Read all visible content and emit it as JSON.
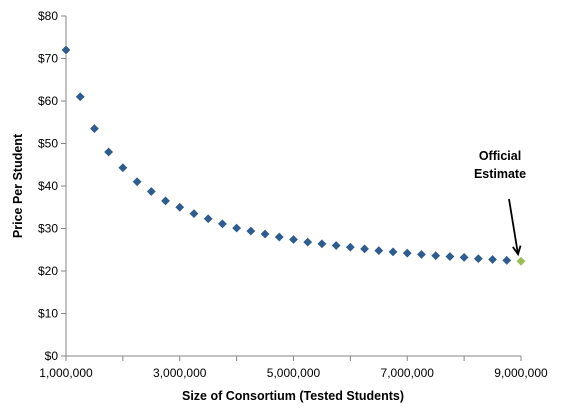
{
  "chart_data": {
    "type": "scatter",
    "title": "",
    "xlabel": "Size of Consortium (Tested Students)",
    "ylabel": "Price Per Student",
    "xlim": [
      1000000,
      9000000
    ],
    "ylim": [
      0,
      80
    ],
    "xticks": [
      1000000,
      3000000,
      5000000,
      7000000,
      9000000
    ],
    "xtick_labels": [
      "1,000,000",
      "3,000,000",
      "5,000,000",
      "7,000,000",
      "9,000,000"
    ],
    "yticks": [
      0,
      10,
      20,
      30,
      40,
      50,
      60,
      70,
      80
    ],
    "ytick_labels": [
      "$0",
      "$10",
      "$20",
      "$30",
      "$40",
      "$50",
      "$60",
      "$70",
      "$80"
    ],
    "grid": false,
    "legend": "none",
    "series": [
      {
        "color": "#2E5C8F",
        "marker": "diamond",
        "points": [
          {
            "x": 1000000,
            "y": 72.0
          },
          {
            "x": 1250000,
            "y": 61.0
          },
          {
            "x": 1500000,
            "y": 53.5
          },
          {
            "x": 1750000,
            "y": 48.0
          },
          {
            "x": 2000000,
            "y": 44.3
          },
          {
            "x": 2250000,
            "y": 41.0
          },
          {
            "x": 2500000,
            "y": 38.7
          },
          {
            "x": 2750000,
            "y": 36.5
          },
          {
            "x": 3000000,
            "y": 35.0
          },
          {
            "x": 3250000,
            "y": 33.5
          },
          {
            "x": 3500000,
            "y": 32.3
          },
          {
            "x": 3750000,
            "y": 31.1
          },
          {
            "x": 4000000,
            "y": 30.1
          },
          {
            "x": 4250000,
            "y": 29.4
          },
          {
            "x": 4500000,
            "y": 28.7
          },
          {
            "x": 4750000,
            "y": 28.0
          },
          {
            "x": 5000000,
            "y": 27.4
          },
          {
            "x": 5250000,
            "y": 26.8
          },
          {
            "x": 5500000,
            "y": 26.4
          },
          {
            "x": 5750000,
            "y": 26.0
          },
          {
            "x": 6000000,
            "y": 25.6
          },
          {
            "x": 6250000,
            "y": 25.2
          },
          {
            "x": 6500000,
            "y": 24.8
          },
          {
            "x": 6750000,
            "y": 24.5
          },
          {
            "x": 7000000,
            "y": 24.2
          },
          {
            "x": 7250000,
            "y": 23.9
          },
          {
            "x": 7500000,
            "y": 23.6
          },
          {
            "x": 7750000,
            "y": 23.4
          },
          {
            "x": 8000000,
            "y": 23.2
          },
          {
            "x": 8250000,
            "y": 22.9
          },
          {
            "x": 8500000,
            "y": 22.7
          },
          {
            "x": 8750000,
            "y": 22.5
          }
        ]
      },
      {
        "color": "#9BBB59",
        "marker": "diamond",
        "points": [
          {
            "x": 9000000,
            "y": 22.3
          }
        ]
      }
    ],
    "annotations": [
      {
        "text_lines": [
          "Official",
          "Estimate"
        ],
        "target_x": 9000000,
        "target_y": 22.3
      }
    ]
  }
}
